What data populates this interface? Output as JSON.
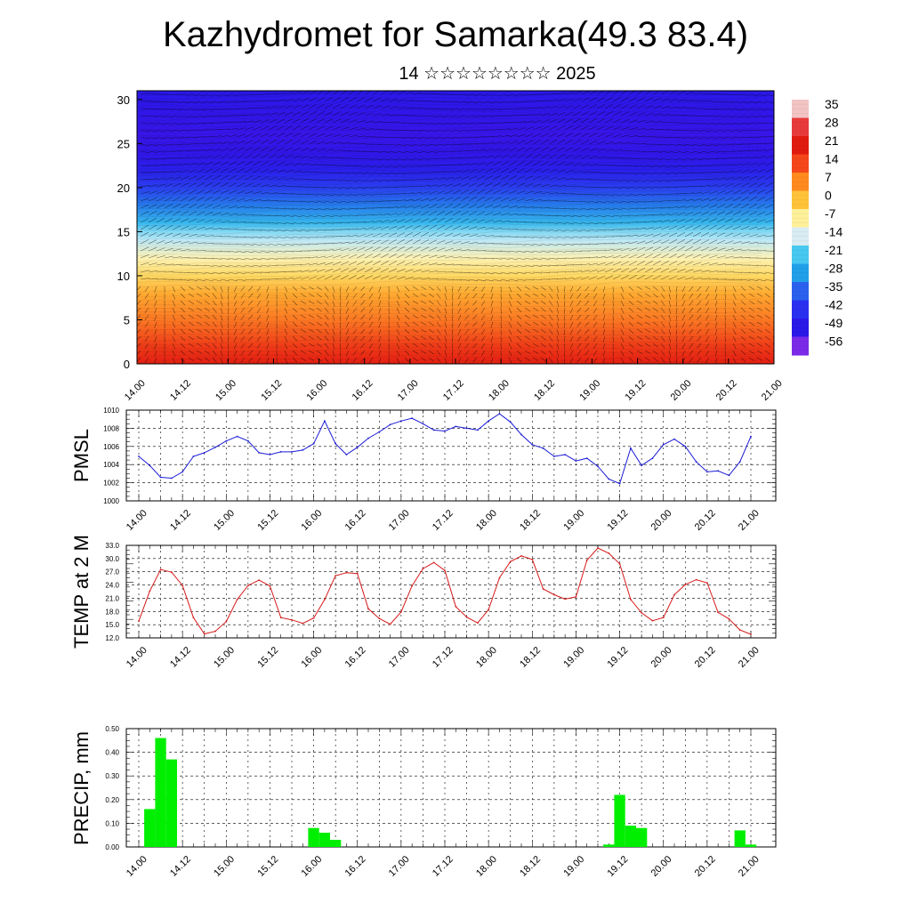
{
  "header": {
    "title": "Kazhydromet for Samarka(49.3 83.4)",
    "date_day": "14",
    "date_month": "☆☆☆☆☆☆☆☆",
    "date_year": "2025"
  },
  "chart_data": [
    {
      "id": "cross_section",
      "type": "heatmap",
      "title": "",
      "xlabel": "",
      "ylabel": "",
      "x_ticks": [
        "14.00",
        "14.12",
        "15.00",
        "15.12",
        "16.00",
        "16.12",
        "17.00",
        "17.12",
        "18.00",
        "18.12",
        "19.00",
        "19.12",
        "20.00",
        "20.12",
        "21.00"
      ],
      "y_ticks": [
        0,
        5,
        10,
        15,
        20,
        25,
        30
      ],
      "ylim": [
        0,
        31
      ],
      "z_description_levels": [
        0,
        2,
        5,
        8,
        10,
        12,
        14,
        15,
        16,
        18,
        20,
        22,
        24,
        26,
        28,
        31
      ],
      "z_values_temperature": [
        21,
        17,
        10,
        4,
        -3,
        -10,
        -15,
        -18,
        -24,
        -32,
        -40,
        -47,
        -52,
        -55,
        -52,
        -49
      ],
      "colorbar_labels": [
        "35",
        "28",
        "21",
        "14",
        "7",
        "0",
        "-7",
        "-14",
        "-21",
        "-28",
        "-35",
        "-42",
        "-49",
        "-56"
      ],
      "colorbar_colors": [
        "#f2c4c4",
        "#e83a3a",
        "#e11a0e",
        "#f5471a",
        "#ff8a1e",
        "#ffc33a",
        "#fff09a",
        "#d8ecf4",
        "#46c8f0",
        "#20a0e8",
        "#2a60ee",
        "#2a30f0",
        "#2a18e8",
        "#7a2ae8"
      ],
      "overlay": "wind barbs"
    },
    {
      "id": "pmsl",
      "type": "line",
      "ylabel": "PMSL",
      "ylim": [
        1000,
        1010
      ],
      "y_ticks": [
        "1000",
        "1002",
        "1004",
        "1006",
        "1008",
        "1010"
      ],
      "x_ticks": [
        "14.00",
        "14.12",
        "15.00",
        "15.12",
        "16.00",
        "16.12",
        "17.00",
        "17.12",
        "18.00",
        "18.12",
        "19.00",
        "19.12",
        "20.00",
        "20.12",
        "21.00"
      ],
      "color": "#1a1ad6",
      "x": [
        0,
        3,
        6,
        9,
        12,
        15,
        18,
        21,
        24,
        27,
        30,
        33,
        36,
        39,
        42,
        45,
        48,
        51,
        54,
        57,
        60,
        63,
        66,
        69,
        72,
        75,
        78,
        81,
        84,
        87,
        90,
        93,
        96,
        99,
        102,
        105,
        108,
        111,
        114,
        117,
        120,
        123,
        126,
        129,
        132,
        135,
        138,
        141,
        144,
        147,
        150,
        153,
        156,
        159,
        162,
        165,
        168
      ],
      "values": [
        1004.9,
        1003.9,
        1002.6,
        1002.5,
        1003.2,
        1004.9,
        1005.3,
        1005.9,
        1006.6,
        1007.1,
        1006.6,
        1005.3,
        1005.1,
        1005.4,
        1005.4,
        1005.6,
        1006.3,
        1008.8,
        1006.3,
        1005.1,
        1005.9,
        1006.9,
        1007.6,
        1008.4,
        1008.8,
        1009.1,
        1008.5,
        1007.8,
        1007.7,
        1008.2,
        1008.0,
        1007.8,
        1008.8,
        1009.6,
        1008.7,
        1007.3,
        1006.2,
        1005.8,
        1004.9,
        1005.1,
        1004.4,
        1004.7,
        1003.8,
        1002.4,
        1001.9,
        1005.8,
        1003.9,
        1004.7,
        1006.2,
        1006.8,
        1006.0,
        1004.3,
        1003.2,
        1003.3,
        1002.8,
        1004.3,
        1007.1
      ]
    },
    {
      "id": "temp2m",
      "type": "line",
      "ylabel": "TEMP at 2 M",
      "ylim": [
        12,
        33
      ],
      "y_ticks": [
        "12.0",
        "15.0",
        "18.0",
        "21.0",
        "24.0",
        "27.0",
        "30.0",
        "33.0"
      ],
      "x_ticks": [
        "14.00",
        "14.12",
        "15.00",
        "15.12",
        "16.00",
        "16.12",
        "17.00",
        "17.12",
        "18.00",
        "18.12",
        "19.00",
        "19.12",
        "20.00",
        "20.12",
        "21.00"
      ],
      "color": "#d61a1a",
      "x": [
        0,
        3,
        6,
        9,
        12,
        15,
        18,
        21,
        24,
        27,
        30,
        33,
        36,
        39,
        42,
        45,
        48,
        51,
        54,
        57,
        60,
        63,
        66,
        69,
        72,
        75,
        78,
        81,
        84,
        87,
        90,
        93,
        96,
        99,
        102,
        105,
        108,
        111,
        114,
        117,
        120,
        123,
        126,
        129,
        132,
        135,
        138,
        141,
        144,
        147,
        150,
        153,
        156,
        159,
        162,
        165,
        168
      ],
      "values": [
        15.8,
        22.6,
        27.5,
        26.9,
        23.9,
        16.6,
        12.9,
        13.5,
        15.7,
        20.7,
        23.9,
        25.1,
        23.8,
        16.6,
        16.1,
        15.3,
        16.5,
        20.7,
        26.1,
        26.8,
        26.6,
        18.6,
        16.4,
        15.1,
        17.9,
        23.8,
        27.7,
        29.1,
        27.3,
        19.1,
        16.7,
        15.4,
        18.4,
        25.6,
        29.3,
        30.6,
        29.8,
        23.1,
        21.8,
        20.8,
        21.3,
        29.6,
        32.4,
        31.2,
        28.8,
        20.7,
        17.7,
        15.9,
        16.6,
        21.8,
        24.1,
        25.2,
        24.5,
        17.8,
        16.3,
        13.8,
        12.8
      ]
    },
    {
      "id": "precip",
      "type": "bar",
      "ylabel": "PRECIP, mm",
      "ylim": [
        0,
        0.5
      ],
      "y_ticks": [
        "0.00",
        "0.10",
        "0.20",
        "0.30",
        "0.40",
        "0.50"
      ],
      "x_ticks": [
        "14.00",
        "14.12",
        "15.00",
        "15.12",
        "16.00",
        "16.12",
        "17.00",
        "17.12",
        "18.00",
        "18.12",
        "19.00",
        "19.12",
        "20.00",
        "20.12",
        "21.00"
      ],
      "color": "#00ee00",
      "bars": [
        {
          "x": 3,
          "value": 0.16
        },
        {
          "x": 6,
          "value": 0.46
        },
        {
          "x": 9,
          "value": 0.37
        },
        {
          "x": 48,
          "value": 0.08
        },
        {
          "x": 51,
          "value": 0.06
        },
        {
          "x": 54,
          "value": 0.03
        },
        {
          "x": 129,
          "value": 0.01
        },
        {
          "x": 132,
          "value": 0.22
        },
        {
          "x": 135,
          "value": 0.09
        },
        {
          "x": 138,
          "value": 0.08
        },
        {
          "x": 165,
          "value": 0.07
        },
        {
          "x": 168,
          "value": 0.01
        }
      ]
    }
  ]
}
